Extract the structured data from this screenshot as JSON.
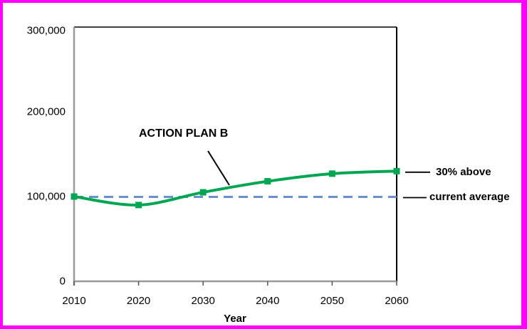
{
  "frame": {
    "border_color": "#FF00FF",
    "background": "#FFFFFF"
  },
  "chart_data": {
    "type": "line",
    "title": "",
    "xlabel": "Year",
    "ylabel": "",
    "x": [
      2010,
      2020,
      2030,
      2040,
      2050,
      2060
    ],
    "series": [
      {
        "name": "ACTION PLAN B",
        "color": "#00A651",
        "marker": "square",
        "smooth": true,
        "values": [
          100000,
          90000,
          105000,
          118000,
          127000,
          130000
        ]
      }
    ],
    "reference_line": {
      "label": "current average",
      "value": 100000,
      "color": "#6B8FC7",
      "style": "dashed"
    },
    "end_label": "30% above",
    "ylim": [
      0,
      300000
    ],
    "yticks": [
      0,
      100000,
      200000,
      300000
    ],
    "xticks": [
      2010,
      2020,
      2030,
      2040,
      2050,
      2060
    ],
    "grid": false,
    "legend_position": "right-annotations"
  }
}
